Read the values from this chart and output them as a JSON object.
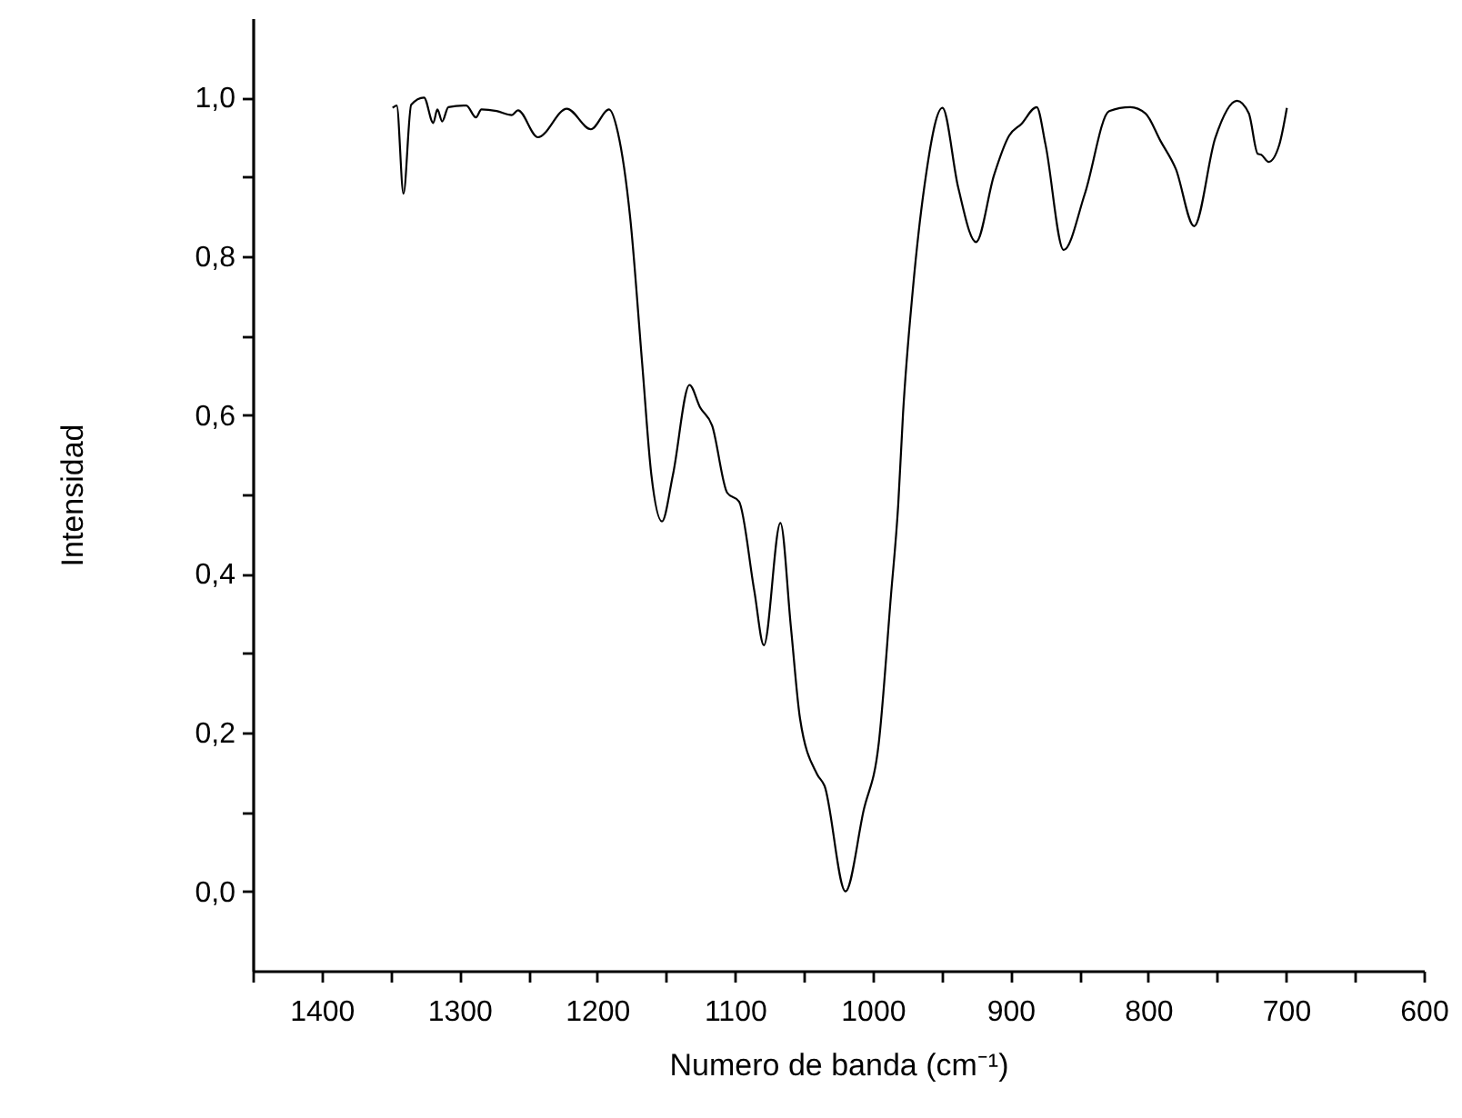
{
  "chart_data": {
    "type": "line",
    "xlabel": "Numero de banda (cm⁻¹)",
    "ylabel": "Intensidad",
    "xlim": [
      1450,
      600
    ],
    "ylim": [
      -0.1,
      1.1
    ],
    "xticks": [
      {
        "value": 1450,
        "label": null
      },
      1400,
      {
        "value": 1350,
        "label": null
      },
      1300,
      {
        "value": 1250,
        "label": null
      },
      1200,
      {
        "value": 1150,
        "label": null
      },
      1100,
      {
        "value": 1050,
        "label": null
      },
      1000,
      {
        "value": 950,
        "label": null
      },
      900,
      {
        "value": 850,
        "label": null
      },
      800,
      {
        "value": 750,
        "label": null
      },
      700,
      {
        "value": 650,
        "label": null
      },
      600
    ],
    "yticks": [
      {
        "value": 0,
        "label": "0,0"
      },
      {
        "value": 0.1,
        "label": null
      },
      {
        "value": 0.2,
        "label": "0,2"
      },
      {
        "value": 0.3,
        "label": null
      },
      {
        "value": 0.4,
        "label": "0,4"
      },
      {
        "value": 0.5,
        "label": null
      },
      {
        "value": 0.6,
        "label": "0,6"
      },
      {
        "value": 0.7,
        "label": null
      },
      {
        "value": 0.8,
        "label": "0,8"
      },
      {
        "value": 0.9,
        "label": null
      },
      {
        "value": 1,
        "label": "1,0"
      }
    ],
    "grid": false,
    "line_style": "solid",
    "marker": "none",
    "series": [
      {
        "color": "#000000",
        "x": [
          1348.5,
          1345.5,
          1340.6,
          1335,
          1325.7,
          1319,
          1316,
          1312.5,
          1308,
          1295,
          1288,
          1284,
          1273,
          1262,
          1257.5,
          1243,
          1222,
          1204.6,
          1191.4,
          1185,
          1176,
          1167.3,
          1160.7,
          1153,
          1145,
          1133,
          1125.4,
          1116.6,
          1105.6,
          1097,
          1086,
          1079,
          1067,
          1059.4,
          1052.8,
          1040.5,
          1035,
          1019.8,
          1006.6,
          995.6,
          986.8,
          981.5,
          978,
          971,
          962.6,
          949.4,
          938,
          925,
          912,
          901,
          892,
          881,
          874.6,
          861.4,
          846,
          828.4,
          813,
          802,
          791,
          780,
          766.7,
          751.4,
          735.6,
          727,
          720.5,
          718,
          712.6,
          705,
          699.4
        ],
        "values": [
          0.987,
          0.99,
          0.879,
          0.991,
          1.0,
          0.968,
          0.985,
          0.97,
          0.988,
          0.99,
          0.975,
          0.985,
          0.983,
          0.978,
          0.984,
          0.95,
          0.986,
          0.96,
          0.985,
          0.956,
          0.848,
          0.664,
          0.525,
          0.466,
          0.525,
          0.638,
          0.61,
          0.587,
          0.502,
          0.491,
          0.379,
          0.31,
          0.464,
          0.333,
          0.218,
          0.148,
          0.133,
          0.0,
          0.102,
          0.187,
          0.372,
          0.487,
          0.602,
          0.756,
          0.887,
          0.987,
          0.887,
          0.818,
          0.902,
          0.952,
          0.967,
          0.988,
          0.941,
          0.808,
          0.879,
          0.983,
          0.988,
          0.98,
          0.945,
          0.91,
          0.838,
          0.949,
          0.996,
          0.98,
          0.929,
          0.928,
          0.919,
          0.94,
          0.987
        ]
      }
    ]
  }
}
